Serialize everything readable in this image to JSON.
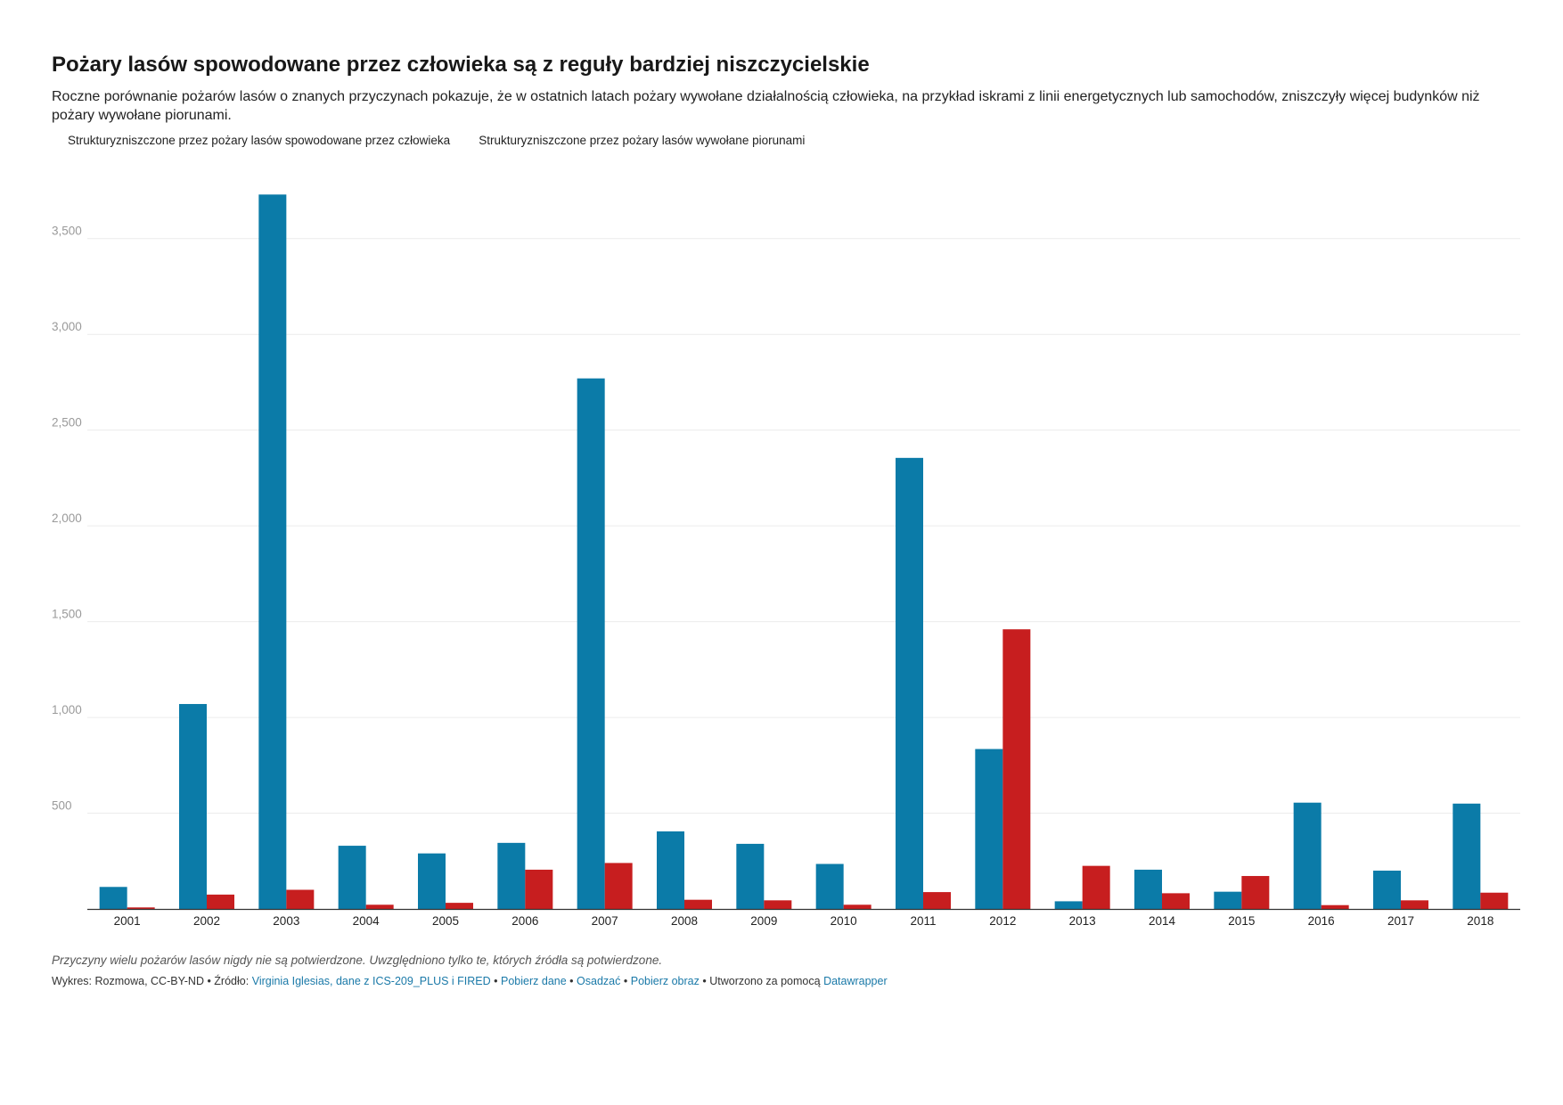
{
  "header": {
    "title": "Pożary lasów spowodowane przez człowieka są z reguły bardziej niszczycielskie",
    "subtitle": "Roczne porównanie pożarów lasów o znanych przyczynach pokazuje, że w ostatnich latach pożary wywołane działalnością człowieka, na przykład iskrami z linii energetycznych lub samochodów, zniszczyły więcej budynków niż pożary wywołane piorunami."
  },
  "legend": {
    "human": "Strukturyzniszczone przez pożary lasów spowodowane przez człowieka",
    "lightning": "Strukturyzniszczone przez pożary lasów wywołane piorunami"
  },
  "colors": {
    "human": "#0b7ba8",
    "lightning": "#c71e1f",
    "grid": "#ececec",
    "axis": "#333333",
    "tick": "#9a9a9a"
  },
  "chart_data": {
    "type": "bar",
    "categories": [
      "2001",
      "2002",
      "2003",
      "2004",
      "2005",
      "2006",
      "2007",
      "2008",
      "2009",
      "2010",
      "2011",
      "2012",
      "2013",
      "2014",
      "2015",
      "2016",
      "2017",
      "2018"
    ],
    "series": [
      {
        "name": "Strukturyzniszczone przez pożary lasów spowodowane przez człowieka",
        "values": [
          115,
          1070,
          3730,
          330,
          290,
          345,
          2770,
          405,
          340,
          235,
          2355,
          835,
          40,
          205,
          90,
          555,
          200,
          550
        ]
      },
      {
        "name": "Strukturyzniszczone przez pożary lasów wywołane piorunami",
        "values": [
          8,
          75,
          100,
          22,
          32,
          205,
          240,
          48,
          45,
          22,
          88,
          1460,
          225,
          82,
          172,
          20,
          45,
          85
        ]
      }
    ],
    "yticks": [
      500,
      1000,
      1500,
      2000,
      2500,
      3000,
      3500
    ],
    "ytick_labels": [
      "500",
      "1,000",
      "1,500",
      "2,000",
      "2,500",
      "3,000",
      "3,500"
    ],
    "ylim": [
      0,
      3750
    ],
    "grid": true,
    "legend_position": "top-left"
  },
  "footer": {
    "note": "Przyczyny wielu pożarów lasów nigdy nie są potwierdzone. Uwzględniono tylko te, których źródła są potwierdzone.",
    "credit": "Wykres: Rozmowa, CC-BY-ND • Źródło:",
    "source_link": "Virginia Iglesias, dane z ICS-209_PLUS i FIRED",
    "sep1": "•",
    "download_data": "Pobierz dane",
    "sep2": "•",
    "embed": "Osadzać",
    "sep3": "•",
    "download_image": "Pobierz obraz",
    "made_with": "• Utworzono za pomocą",
    "tool": "Datawrapper"
  }
}
